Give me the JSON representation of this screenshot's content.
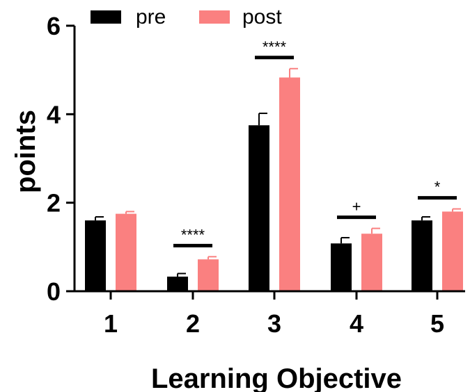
{
  "chart_data": {
    "type": "bar",
    "xlabel": "Learning Objective",
    "ylabel": "points",
    "categories": [
      "1",
      "2",
      "3",
      "4",
      "5"
    ],
    "ylim": [
      0,
      6
    ],
    "yticks": [
      "0",
      "2",
      "4",
      "6"
    ],
    "legend_position": "top-left",
    "series": [
      {
        "name": "pre",
        "color": "#000000",
        "values": [
          1.6,
          0.33,
          3.75,
          1.08,
          1.6
        ],
        "errors": [
          0.08,
          0.07,
          0.27,
          0.13,
          0.08
        ]
      },
      {
        "name": "post",
        "color": "#FA8080",
        "values": [
          1.75,
          0.72,
          4.83,
          1.3,
          1.8
        ],
        "errors": [
          0.05,
          0.06,
          0.2,
          0.12,
          0.06
        ]
      }
    ],
    "significance": [
      {
        "category_index": 1,
        "label": "****"
      },
      {
        "category_index": 2,
        "label": "****"
      },
      {
        "category_index": 3,
        "label": "+"
      },
      {
        "category_index": 4,
        "label": "*"
      }
    ]
  }
}
